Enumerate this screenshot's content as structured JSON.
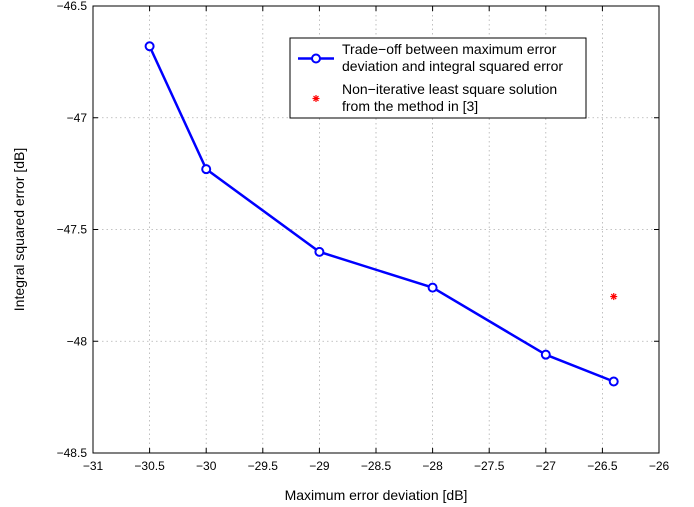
{
  "chart_data": {
    "type": "line",
    "title": "",
    "xlabel": "Maximum error deviation [dB]",
    "ylabel": "Integral squared error [dB]",
    "xlim": [
      -31,
      -26
    ],
    "ylim": [
      -48.5,
      -46.5
    ],
    "xticks": [
      -31,
      -30.5,
      -30,
      -29.5,
      -29,
      -28.5,
      -28,
      -27.5,
      -27,
      -26.5,
      -26
    ],
    "yticks": [
      -48.5,
      -48,
      -47.5,
      -47,
      -46.5
    ],
    "xtick_labels": [
      "−31",
      "−30.5",
      "−30",
      "−29.5",
      "−29",
      "−28.5",
      "−28",
      "−27.5",
      "−27",
      "−26.5",
      "−26"
    ],
    "ytick_labels": [
      "−48.5",
      "−48",
      "−47.5",
      "−47",
      "−46.5"
    ],
    "grid": true,
    "legend_position": "top-right",
    "series": [
      {
        "name": "Trade−off between maximum error deviation and integral squared error",
        "legend_lines": [
          "Trade−off between maximum error",
          "deviation and integral squared error"
        ],
        "marker": "circle",
        "line": "solid",
        "color": "#0000ff",
        "x": [
          -30.5,
          -30.0,
          -29.0,
          -28.0,
          -27.0,
          -26.4
        ],
        "y": [
          -46.68,
          -47.23,
          -47.6,
          -47.76,
          -48.06,
          -48.18
        ]
      },
      {
        "name": "Non−iterative least square solution from the method in [3]",
        "legend_lines": [
          "Non−iterative least square solution",
          "from the method in [3]"
        ],
        "marker": "asterisk",
        "line": "none",
        "color": "#ff0000",
        "x": [
          -26.4
        ],
        "y": [
          -47.8
        ]
      }
    ]
  }
}
